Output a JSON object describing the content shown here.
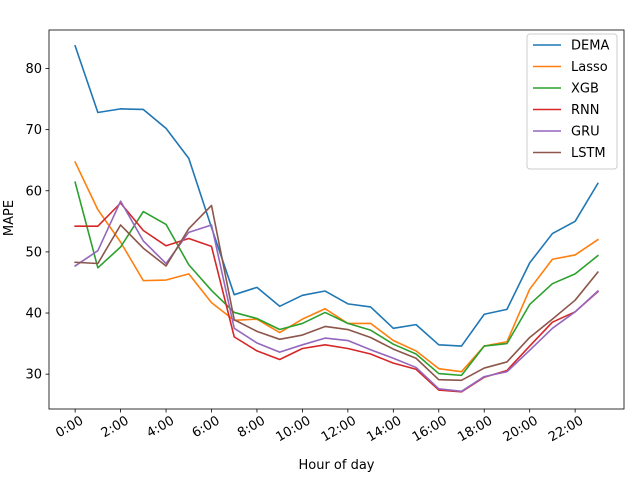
{
  "chart_data": {
    "type": "line",
    "xlabel": "Hour of day",
    "ylabel": "MAPE",
    "x": [
      0,
      1,
      2,
      3,
      4,
      5,
      6,
      7,
      8,
      9,
      10,
      11,
      12,
      13,
      14,
      15,
      16,
      17,
      18,
      19,
      20,
      21,
      22,
      23
    ],
    "xticks": [
      0,
      2,
      4,
      6,
      8,
      10,
      12,
      14,
      16,
      18,
      20,
      22
    ],
    "xtick_labels": [
      "0:00",
      "2:00",
      "4:00",
      "6:00",
      "8:00",
      "10:00",
      "12:00",
      "14:00",
      "16:00",
      "18:00",
      "20:00",
      "22:00"
    ],
    "yticks": [
      30,
      40,
      50,
      60,
      70,
      80
    ],
    "xlim": [
      -1.15,
      24.15
    ],
    "ylim": [
      24.3,
      86.3
    ],
    "legend_position": "top-right",
    "grid": false,
    "series": [
      {
        "name": "DEMA",
        "color": "#1f77b4",
        "values": [
          83.7,
          72.8,
          73.4,
          73.3,
          70.2,
          65.3,
          54.0,
          43.0,
          44.2,
          41.1,
          42.9,
          43.6,
          41.5,
          41.0,
          37.5,
          38.1,
          34.8,
          34.6,
          39.8,
          40.6,
          48.2,
          53.0,
          55.0,
          61.2
        ]
      },
      {
        "name": "Lasso",
        "color": "#ff7f0e",
        "values": [
          64.7,
          56.9,
          51.6,
          45.3,
          45.4,
          46.4,
          41.7,
          38.8,
          39.0,
          36.8,
          39.0,
          40.7,
          38.3,
          38.3,
          35.5,
          33.8,
          30.9,
          30.4,
          34.6,
          35.3,
          43.9,
          48.8,
          49.5,
          52.0
        ]
      },
      {
        "name": "XGB",
        "color": "#2ca02c",
        "values": [
          61.4,
          47.4,
          50.8,
          56.6,
          54.5,
          47.9,
          43.7,
          40.1,
          39.1,
          37.3,
          38.3,
          40.1,
          38.3,
          37.2,
          34.9,
          33.3,
          30.1,
          29.8,
          34.6,
          35.0,
          41.4,
          44.8,
          46.4,
          49.4
        ]
      },
      {
        "name": "RNN",
        "color": "#d62728",
        "values": [
          54.2,
          54.2,
          58.0,
          53.5,
          51.0,
          52.2,
          50.9,
          36.1,
          33.8,
          32.4,
          34.2,
          34.8,
          34.2,
          33.3,
          31.8,
          30.8,
          27.4,
          27.1,
          29.5,
          30.6,
          34.6,
          38.5,
          40.2,
          43.5
        ]
      },
      {
        "name": "GRU",
        "color": "#9467bd",
        "values": [
          47.7,
          50.2,
          58.3,
          51.8,
          48.1,
          53.2,
          54.4,
          37.5,
          35.1,
          33.6,
          34.8,
          35.9,
          35.5,
          34.0,
          32.6,
          31.1,
          27.6,
          27.2,
          29.6,
          30.4,
          33.9,
          37.5,
          40.2,
          43.6
        ]
      },
      {
        "name": "LSTM",
        "color": "#8c564b",
        "values": [
          48.3,
          48.1,
          54.4,
          50.6,
          47.7,
          53.8,
          57.6,
          38.9,
          37.0,
          35.7,
          36.4,
          37.8,
          37.3,
          36.0,
          34.1,
          32.6,
          29.1,
          29.0,
          31.0,
          32.0,
          36.0,
          39.0,
          42.1,
          46.7
        ]
      }
    ]
  }
}
